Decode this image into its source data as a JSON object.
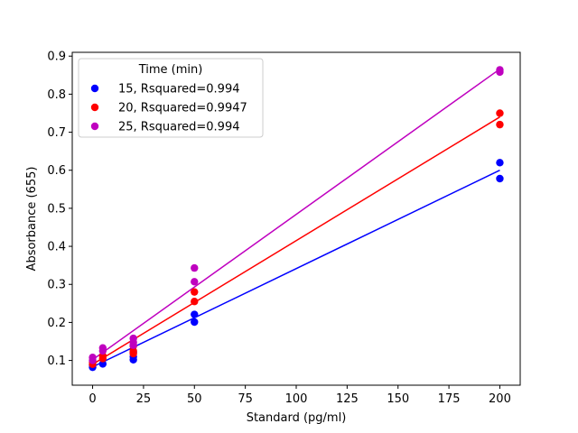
{
  "chart_data": {
    "type": "scatter",
    "title": "",
    "xlabel": "Standard (pg/ml)",
    "ylabel": "Absorbance (655)",
    "xlim": [
      -10,
      210
    ],
    "ylim": [
      0.035,
      0.91
    ],
    "xticks": [
      0,
      25,
      50,
      75,
      100,
      125,
      150,
      175,
      200
    ],
    "xtick_labels": [
      "0",
      "25",
      "50",
      "75",
      "100",
      "125",
      "150",
      "175",
      "200"
    ],
    "yticks": [
      0.1,
      0.2,
      0.3,
      0.4,
      0.5,
      0.6,
      0.7,
      0.8,
      0.9
    ],
    "ytick_labels": [
      "0.1",
      "0.2",
      "0.3",
      "0.4",
      "0.5",
      "0.6",
      "0.7",
      "0.8",
      "0.9"
    ],
    "grid": false,
    "legend": {
      "title": "Time (min)",
      "placement": "upper-left"
    },
    "series": [
      {
        "name": "15, Rsquared=0.994",
        "color": "#0000ff",
        "points": [
          [
            0,
            0.082
          ],
          [
            0,
            0.088
          ],
          [
            5,
            0.091
          ],
          [
            20,
            0.102
          ],
          [
            20,
            0.11
          ],
          [
            20,
            0.122
          ],
          [
            50,
            0.201
          ],
          [
            50,
            0.221
          ],
          [
            200,
            0.578
          ],
          [
            200,
            0.62
          ]
        ],
        "fit": [
          [
            0,
            0.083
          ],
          [
            200,
            0.6
          ]
        ]
      },
      {
        "name": "20, Rsquared=0.9947",
        "color": "#ff0000",
        "points": [
          [
            0,
            0.09
          ],
          [
            0,
            0.096
          ],
          [
            5,
            0.105
          ],
          [
            5,
            0.112
          ],
          [
            20,
            0.118
          ],
          [
            20,
            0.125
          ],
          [
            20,
            0.138
          ],
          [
            50,
            0.255
          ],
          [
            50,
            0.28
          ],
          [
            200,
            0.72
          ],
          [
            200,
            0.75
          ]
        ],
        "fit": [
          [
            0,
            0.09
          ],
          [
            200,
            0.74
          ]
        ]
      },
      {
        "name": "25, Rsquared=0.994",
        "color": "#bf00bf",
        "points": [
          [
            0,
            0.1
          ],
          [
            0,
            0.108
          ],
          [
            5,
            0.125
          ],
          [
            5,
            0.133
          ],
          [
            20,
            0.14
          ],
          [
            20,
            0.148
          ],
          [
            20,
            0.158
          ],
          [
            50,
            0.307
          ],
          [
            50,
            0.343
          ],
          [
            200,
            0.858
          ],
          [
            200,
            0.864
          ]
        ],
        "fit": [
          [
            0,
            0.102
          ],
          [
            200,
            0.866
          ]
        ]
      }
    ]
  }
}
